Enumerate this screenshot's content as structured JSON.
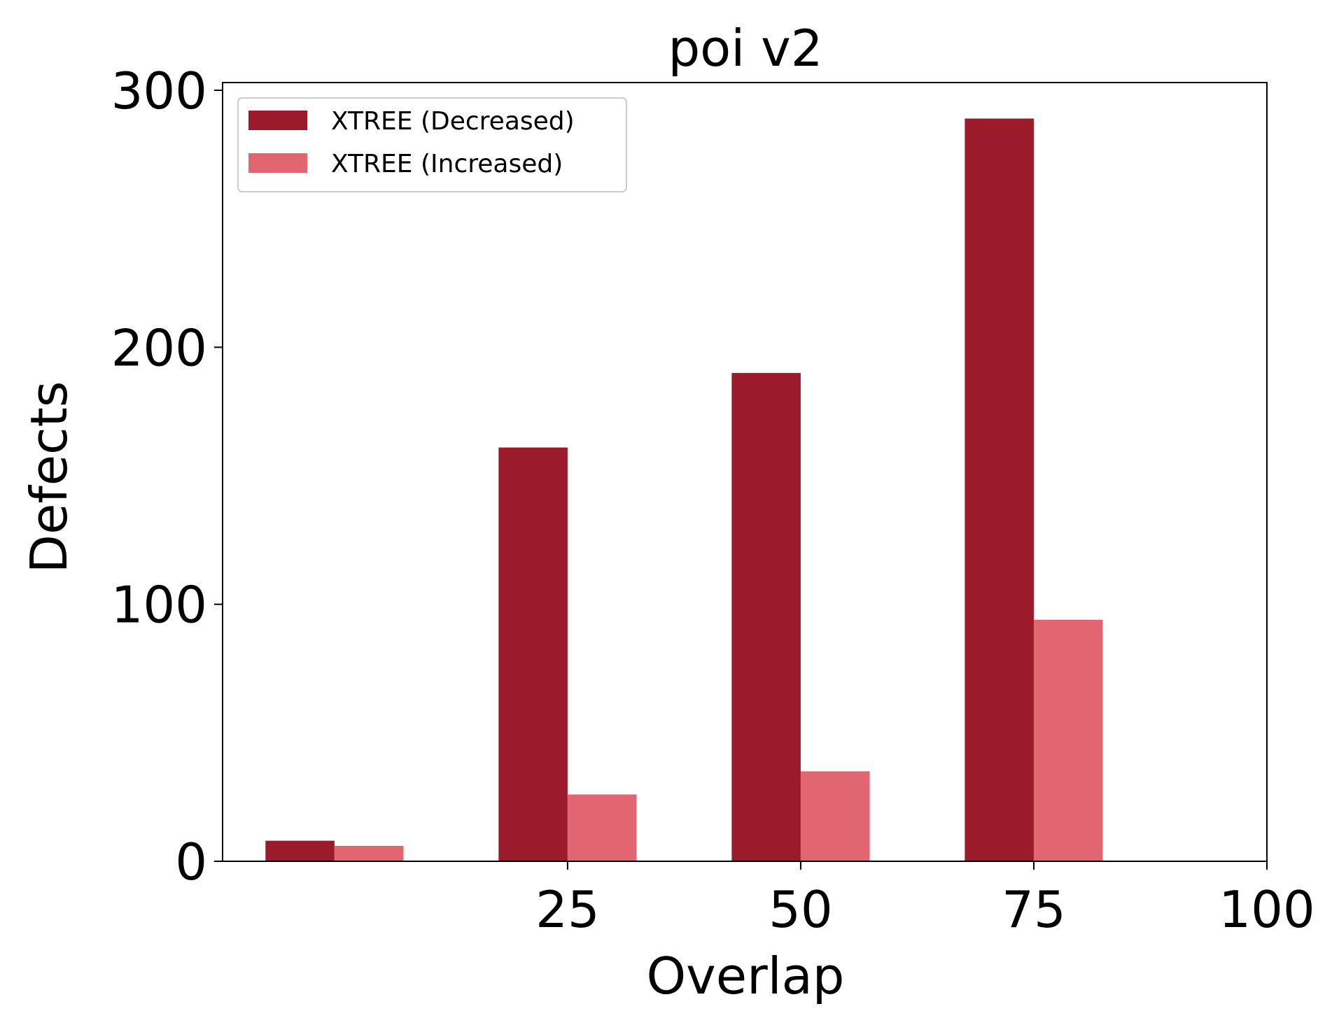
{
  "chart_data": {
    "type": "bar",
    "title": "poi v2",
    "xlabel": "Overlap",
    "ylabel": "Defects",
    "categories": [
      0,
      25,
      50,
      75
    ],
    "x_ticks": [
      25,
      50,
      75,
      100
    ],
    "y_ticks": [
      0,
      100,
      200,
      300
    ],
    "xlim": [
      -12,
      100
    ],
    "ylim": [
      0,
      303
    ],
    "grid": false,
    "legend_position": "top-left",
    "series": [
      {
        "name": "XTREE (Decreased)",
        "color": "#9b1b2a",
        "values": [
          8,
          161,
          190,
          289
        ]
      },
      {
        "name": "XTREE (Increased)",
        "color": "#e26671",
        "values": [
          6,
          26,
          35,
          94
        ]
      }
    ]
  }
}
